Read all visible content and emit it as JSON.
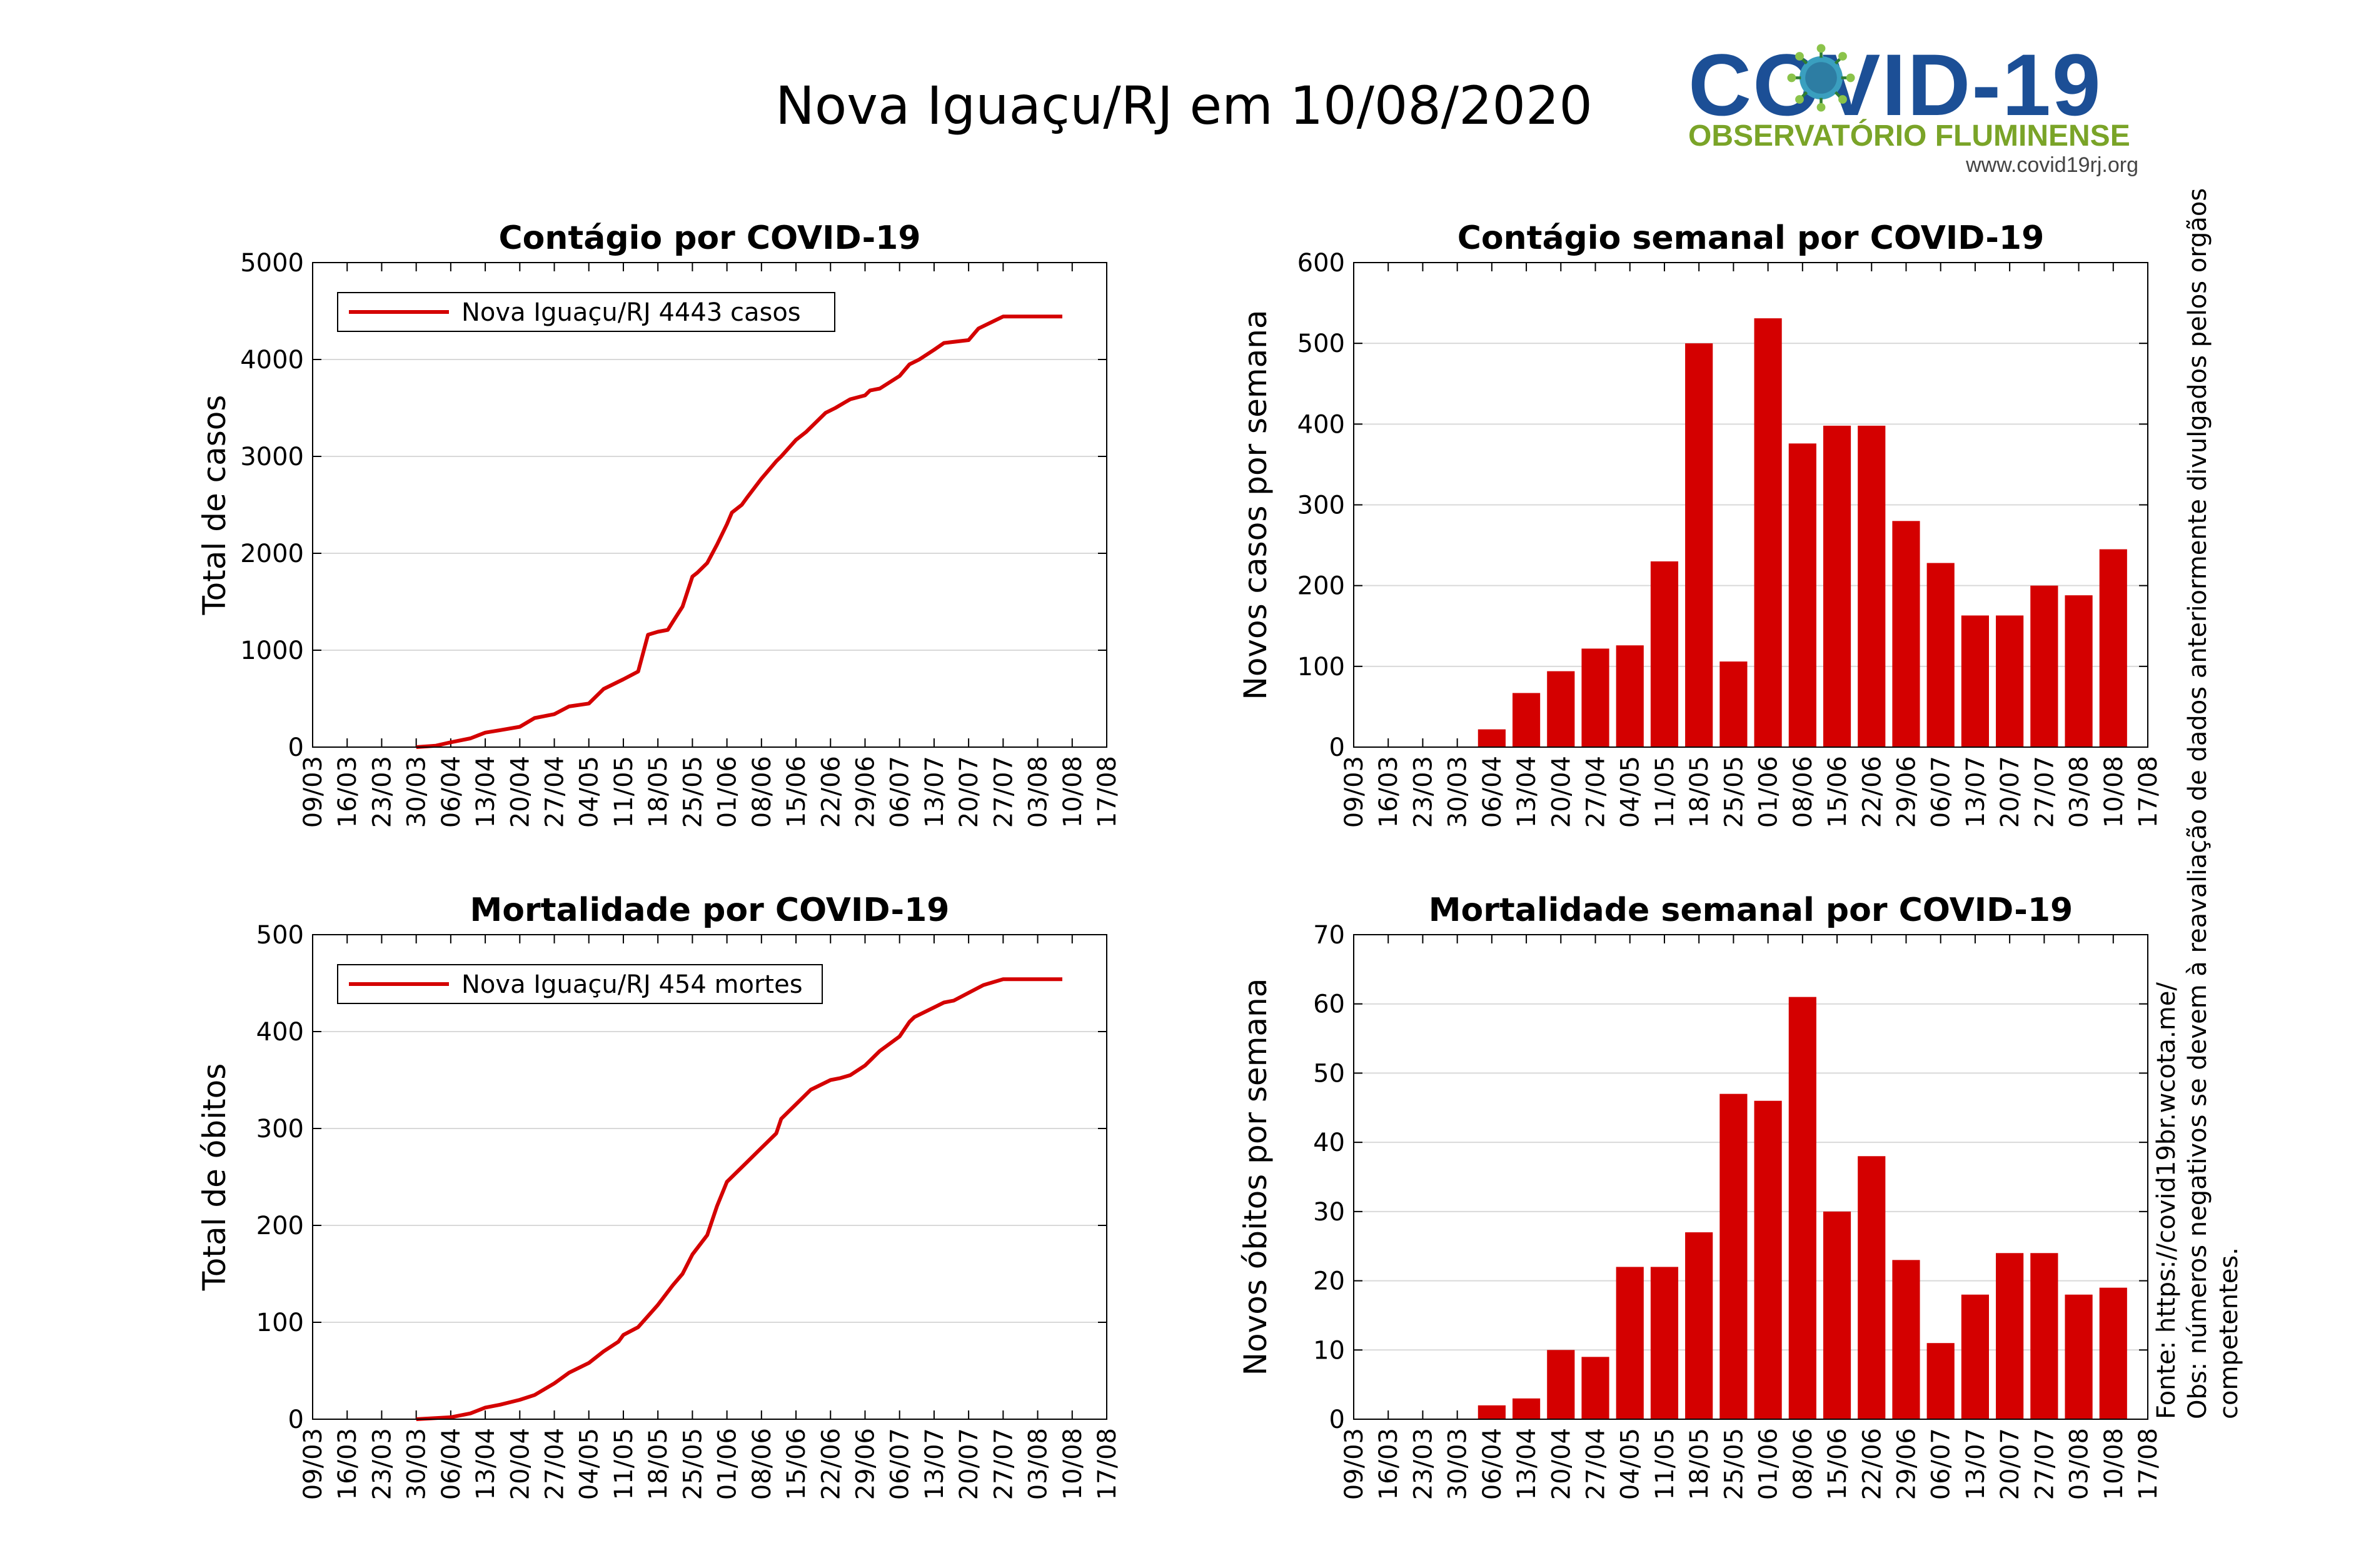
{
  "header": {
    "title": "Nova Iguaçu/RJ em 10/08/2020"
  },
  "logo": {
    "main": "COVID-19",
    "subtitle": "OBSERVATÓRIO FLUMINENSE",
    "url": "www.covid19rj.org"
  },
  "notes": {
    "source": "Fonte: https://covid19br.wcota.me/",
    "obs": "Obs: números negativos se devem à reavaliação de dados anteriormente divulgados pelos orgãos competentes."
  },
  "colors": {
    "series": "#d40000",
    "grid": "#d9d9d9",
    "logo_blue": "#1c4f96",
    "logo_green": "#7aa428"
  },
  "x_ticks": [
    "09/03",
    "16/03",
    "23/03",
    "30/03",
    "06/04",
    "13/04",
    "20/04",
    "27/04",
    "04/05",
    "11/05",
    "18/05",
    "25/05",
    "01/06",
    "08/06",
    "15/06",
    "22/06",
    "29/06",
    "06/07",
    "13/07",
    "20/07",
    "27/07",
    "03/08",
    "10/08",
    "17/08"
  ],
  "chart_data": [
    {
      "id": "cases-total",
      "type": "line",
      "title": "Contágio por COVID-19",
      "xlabel": "",
      "ylabel": "Total de casos",
      "ylim": [
        0,
        5000
      ],
      "yticks": [
        "0",
        "1000",
        "2000",
        "3000",
        "4000",
        "5000"
      ],
      "grid": true,
      "legend": {
        "position": "top-left",
        "label": "Nova Iguaçu/RJ  4443 casos"
      },
      "series": [
        {
          "name": "Nova Iguaçu/RJ  4443 casos",
          "x_days": [
            21,
            25,
            28,
            32,
            35,
            38,
            42,
            45,
            49,
            52,
            56,
            59,
            63,
            66,
            68,
            70,
            72,
            73,
            75,
            77,
            78,
            80,
            82,
            84,
            85,
            87,
            88,
            91,
            94,
            95,
            98,
            100,
            102,
            104,
            106,
            108,
            109,
            112,
            113,
            115,
            119,
            121,
            123,
            126,
            128,
            133,
            135,
            140,
            143,
            146,
            147,
            149,
            151,
            152
          ],
          "values": [
            0,
            15,
            50,
            90,
            150,
            175,
            210,
            300,
            340,
            420,
            450,
            600,
            700,
            780,
            1160,
            1190,
            1210,
            1290,
            1450,
            1760,
            1800,
            1900,
            2090,
            2300,
            2420,
            2500,
            2570,
            2770,
            2950,
            3000,
            3170,
            3250,
            3350,
            3450,
            3500,
            3560,
            3590,
            3630,
            3680,
            3700,
            3830,
            3950,
            4000,
            4100,
            4170,
            4200,
            4320,
            4443,
            4443,
            4443,
            4443,
            4443,
            4443,
            4443
          ]
        }
      ]
    },
    {
      "id": "cases-weekly",
      "type": "bar",
      "title": "Contágio semanal por COVID-19",
      "xlabel": "",
      "ylabel": "Novos casos por semana",
      "ylim": [
        0,
        600
      ],
      "yticks": [
        "0",
        "100",
        "200",
        "300",
        "400",
        "500",
        "600"
      ],
      "grid": true,
      "categories": [
        "06/04",
        "13/04",
        "20/04",
        "27/04",
        "04/05",
        "11/05",
        "18/05",
        "25/05",
        "01/06",
        "08/06",
        "15/06",
        "22/06",
        "29/06",
        "06/07",
        "13/07",
        "20/07",
        "27/07",
        "03/08",
        "10/08"
      ],
      "values": [
        22,
        67,
        94,
        122,
        126,
        230,
        500,
        106,
        531,
        376,
        398,
        398,
        280,
        228,
        163,
        163,
        200,
        188,
        245
      ]
    },
    {
      "id": "deaths-total",
      "type": "line",
      "title": "Mortalidade por COVID-19",
      "xlabel": "",
      "ylabel": "Total de óbitos",
      "ylim": [
        0,
        500
      ],
      "yticks": [
        "0",
        "100",
        "200",
        "300",
        "400",
        "500"
      ],
      "grid": true,
      "legend": {
        "position": "top-left",
        "label": "Nova Iguaçu/RJ  454 mortes"
      },
      "series": [
        {
          "name": "Nova Iguaçu/RJ  454 mortes",
          "x_days": [
            21,
            28,
            32,
            35,
            38,
            42,
            45,
            49,
            52,
            56,
            59,
            62,
            63,
            66,
            70,
            73,
            75,
            77,
            80,
            82,
            84,
            86,
            88,
            91,
            92,
            94,
            95,
            98,
            101,
            105,
            107,
            109,
            112,
            115,
            119,
            121,
            122,
            126,
            128,
            130,
            133,
            136,
            140,
            144,
            146,
            147,
            149,
            151,
            152
          ],
          "values": [
            0,
            2,
            6,
            12,
            15,
            20,
            25,
            37,
            48,
            58,
            70,
            80,
            87,
            95,
            118,
            138,
            150,
            170,
            190,
            220,
            245,
            255,
            265,
            280,
            285,
            295,
            310,
            325,
            340,
            350,
            352,
            355,
            365,
            380,
            395,
            410,
            415,
            425,
            430,
            432,
            440,
            448,
            454,
            454,
            454,
            454,
            454,
            454,
            454
          ]
        }
      ]
    },
    {
      "id": "deaths-weekly",
      "type": "bar",
      "title": "Mortalidade semanal por COVID-19",
      "xlabel": "",
      "ylabel": "Novos óbitos por semana",
      "ylim": [
        0,
        70
      ],
      "yticks": [
        "0",
        "10",
        "20",
        "30",
        "40",
        "50",
        "60",
        "70"
      ],
      "grid": true,
      "categories": [
        "06/04",
        "13/04",
        "20/04",
        "27/04",
        "04/05",
        "11/05",
        "18/05",
        "25/05",
        "01/06",
        "08/06",
        "15/06",
        "22/06",
        "29/06",
        "06/07",
        "13/07",
        "20/07",
        "27/07",
        "03/08",
        "10/08"
      ],
      "values": [
        2,
        3,
        10,
        9,
        22,
        22,
        27,
        47,
        46,
        61,
        30,
        38,
        23,
        11,
        18,
        24,
        24,
        18,
        19
      ]
    }
  ]
}
